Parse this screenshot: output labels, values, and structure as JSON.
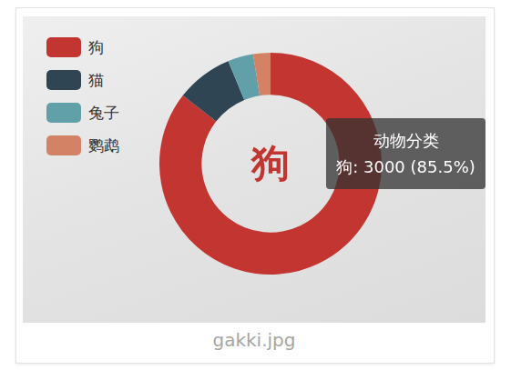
{
  "caption": "gakki.jpg",
  "chart_data": {
    "type": "doughnut",
    "categories": [
      "狗",
      "猫",
      "兔子",
      "鹦鹉"
    ],
    "values": [
      3000,
      290,
      130,
      88
    ],
    "colors": [
      "#c23531",
      "#2f4554",
      "#61a0a8",
      "#d48265"
    ],
    "legend": "upper left",
    "center_label": "狗",
    "tooltip": {
      "title": "动物分类",
      "text": "狗: 3000 (85.5%)"
    }
  }
}
